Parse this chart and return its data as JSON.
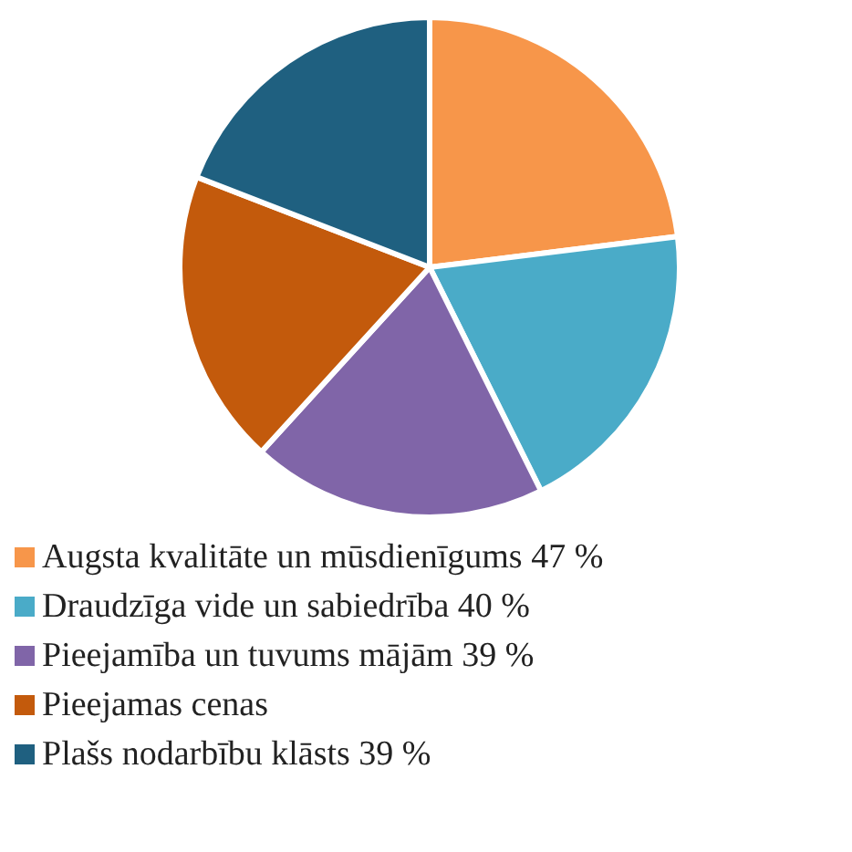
{
  "chart_data": {
    "type": "pie",
    "categories": [
      "Augsta kvalitāte un mūsdienīgums",
      "Draudzīga vide un sabiedrība",
      "Pieejamība un tuvums mājām",
      "Pieejamas cenas",
      "Plašs nodarbību klāsts"
    ],
    "values": [
      47,
      40,
      39,
      39,
      39
    ],
    "value_labels": [
      "47 %",
      "40 %",
      "39 %",
      null,
      "39 %"
    ],
    "colors": [
      "#f7964a",
      "#4aabc8",
      "#8065a8",
      "#c35a0c",
      "#1f6080"
    ],
    "legend": "bottom"
  }
}
